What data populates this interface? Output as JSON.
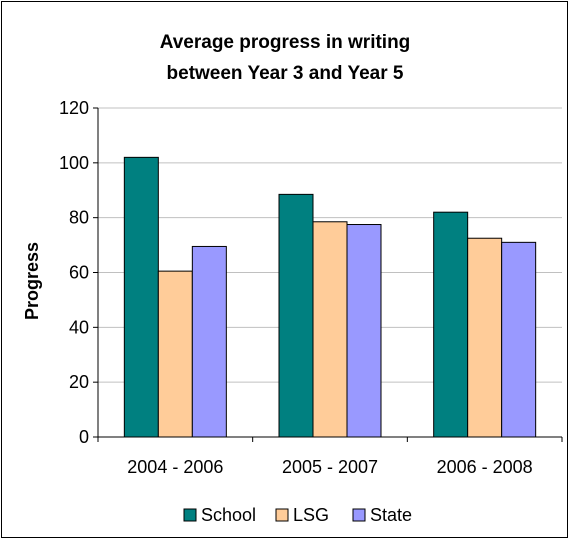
{
  "chart_data": {
    "type": "bar",
    "title_lines": [
      "Average progress in writing",
      "between Year 3 and Year 5"
    ],
    "ylabel": "Progress",
    "xlabel": "",
    "ylim": [
      0,
      120
    ],
    "yticks": [
      0,
      20,
      40,
      60,
      80,
      100,
      120
    ],
    "grid": true,
    "legend_position": "bottom",
    "categories": [
      "2004 - 2006",
      "2005 - 2007",
      "2006 - 2008"
    ],
    "series": [
      {
        "name": "School",
        "color": "#008080",
        "values": [
          102,
          88.5,
          82
        ]
      },
      {
        "name": "LSG",
        "color": "#FFCC99",
        "values": [
          60.5,
          78.5,
          72.5
        ]
      },
      {
        "name": "State",
        "color": "#9999FF",
        "values": [
          69.5,
          77.5,
          71
        ]
      }
    ]
  }
}
